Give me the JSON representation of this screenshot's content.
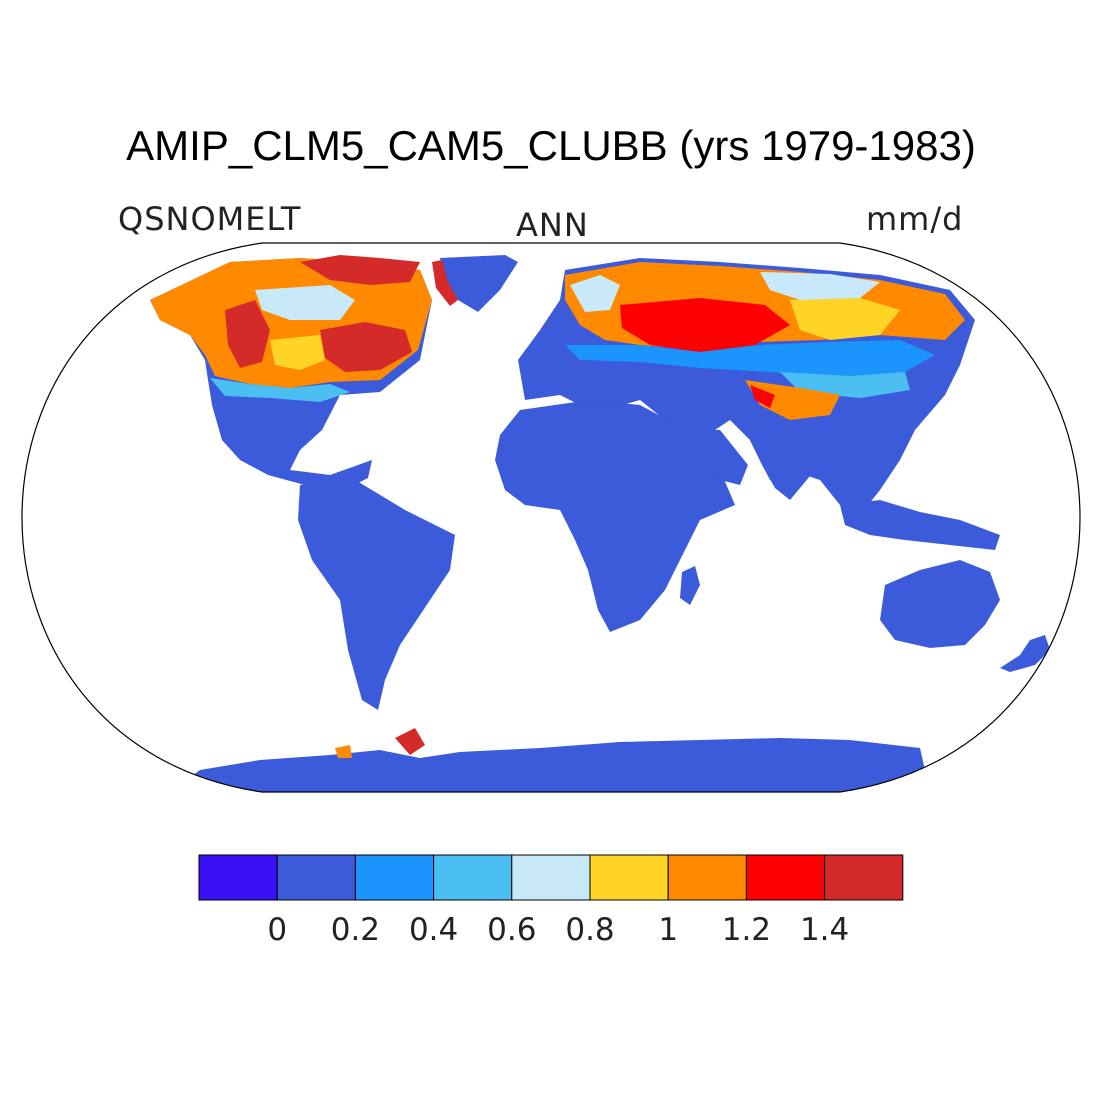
{
  "title": "AMIP_CLM5_CAM5_CLUBB (yrs 1979-1983)",
  "variable": "QSNOMELT",
  "season": "ANN",
  "units": "mm/d",
  "colorbar": {
    "colors": [
      "#3a10f5",
      "#3b5bdb",
      "#1b94fb",
      "#4cbff2",
      "#c8e9f9",
      "#ffd426",
      "#ff8a00",
      "#ff0000",
      "#d42a2a"
    ],
    "labels": [
      "0",
      "0.2",
      "0.4",
      "0.6",
      "0.8",
      "1",
      "1.2",
      "1.4"
    ]
  },
  "map_colors": {
    "ocean": "#ffffff",
    "land_low": "#3b5bdb"
  }
}
